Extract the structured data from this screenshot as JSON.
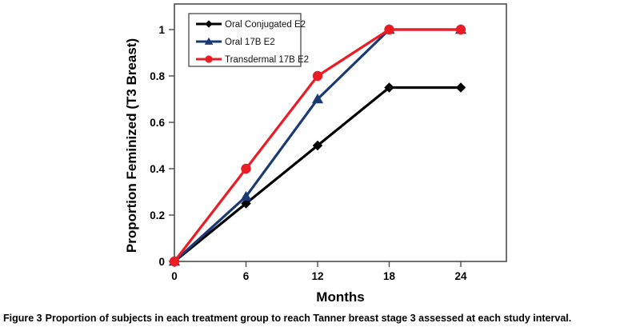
{
  "chart_data": {
    "type": "line",
    "title": "",
    "xlabel": "Months",
    "ylabel": "Proportion Feminized (T3 Breast)",
    "x": [
      0,
      6,
      12,
      18,
      24
    ],
    "x_ticks": [
      "0",
      "6",
      "12",
      "18",
      "24"
    ],
    "y_ticks": [
      "0",
      "0.2",
      "0.4",
      "0.6",
      "0.8",
      "1"
    ],
    "xlim": [
      0,
      27.8
    ],
    "ylim": [
      0,
      1.11
    ],
    "grid": false,
    "legend": {
      "position": "inside-top-left",
      "border": true
    },
    "series": [
      {
        "name": "Oral Conjugated E2",
        "color": "#000000",
        "marker": "diamond",
        "values": [
          0,
          0.25,
          0.5,
          0.75,
          0.75
        ]
      },
      {
        "name": "Oral 17B E2",
        "color": "#1a3a73",
        "marker": "triangle",
        "values": [
          0,
          0.28,
          0.7,
          1,
          1
        ]
      },
      {
        "name": "Transdermal 17B E2",
        "color": "#ec1c24",
        "marker": "circle",
        "values": [
          0,
          0.4,
          0.8,
          1,
          1
        ]
      }
    ]
  },
  "caption": {
    "label": "Figure 3",
    "text": "Proportion of subjects in each treatment group to reach Tanner breast stage 3 assessed at each study interval."
  }
}
